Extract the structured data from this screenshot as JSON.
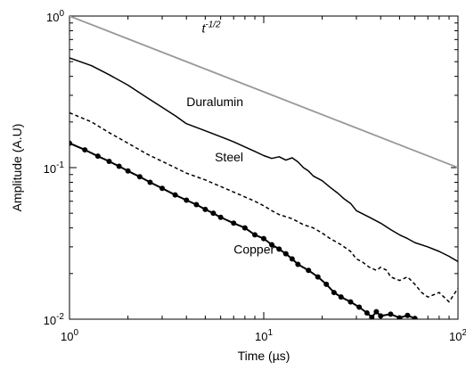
{
  "chart_data": {
    "type": "line",
    "xlabel": "Time (µs)",
    "ylabel": "Amplitude (A.U)",
    "xscale": "log",
    "yscale": "log",
    "xlim": [
      1,
      100
    ],
    "ylim": [
      0.01,
      1
    ],
    "grid": false,
    "legend": "none",
    "x_ticks": [
      {
        "value": 1,
        "base": "10",
        "exp": "0"
      },
      {
        "value": 10,
        "base": "10",
        "exp": "1"
      },
      {
        "value": 100,
        "base": "10",
        "exp": "2"
      }
    ],
    "y_ticks": [
      {
        "value": 0.01,
        "base": "10",
        "exp": "-2"
      },
      {
        "value": 0.1,
        "base": "10",
        "exp": "-1"
      },
      {
        "value": 1,
        "base": "10",
        "exp": "0"
      }
    ],
    "series": [
      {
        "name": "t",
        "name_sup": "-1/2",
        "label_at": [
          4.8,
          0.78
        ],
        "style": "solid-gray",
        "color": "#999999",
        "x": [
          1,
          100
        ],
        "y": [
          1.0,
          0.1
        ]
      },
      {
        "name": "Duralumin",
        "label_at": [
          4.0,
          0.255
        ],
        "style": "solid",
        "color": "#000000",
        "x": [
          1,
          1.3,
          1.6,
          2,
          2.5,
          3,
          3.5,
          4,
          5,
          6,
          7,
          8,
          9,
          10,
          11,
          12,
          13,
          14,
          15,
          16,
          17,
          18,
          20,
          22,
          24,
          26,
          28,
          30,
          35,
          40,
          45,
          50,
          55,
          60,
          70,
          80,
          90,
          100
        ],
        "y": [
          0.53,
          0.47,
          0.41,
          0.35,
          0.29,
          0.25,
          0.22,
          0.195,
          0.175,
          0.16,
          0.148,
          0.137,
          0.128,
          0.12,
          0.115,
          0.118,
          0.112,
          0.116,
          0.109,
          0.1,
          0.095,
          0.088,
          0.082,
          0.074,
          0.068,
          0.062,
          0.058,
          0.052,
          0.047,
          0.043,
          0.039,
          0.036,
          0.034,
          0.032,
          0.03,
          0.028,
          0.026,
          0.024
        ]
      },
      {
        "name": "Steel",
        "label_at": [
          5.6,
          0.11
        ],
        "style": "dashed",
        "color": "#000000",
        "x": [
          1,
          1.3,
          1.6,
          2,
          2.5,
          3,
          3.5,
          4,
          5,
          6,
          7,
          8,
          9,
          10,
          11,
          12,
          14,
          16,
          18,
          20,
          22,
          25,
          28,
          30,
          32,
          35,
          38,
          40,
          43,
          45,
          50,
          55,
          60,
          65,
          70,
          80,
          90,
          100
        ],
        "y": [
          0.23,
          0.2,
          0.17,
          0.145,
          0.123,
          0.11,
          0.1,
          0.092,
          0.083,
          0.075,
          0.069,
          0.064,
          0.06,
          0.056,
          0.052,
          0.049,
          0.046,
          0.042,
          0.04,
          0.037,
          0.034,
          0.031,
          0.028,
          0.025,
          0.024,
          0.022,
          0.021,
          0.022,
          0.021,
          0.019,
          0.018,
          0.019,
          0.017,
          0.015,
          0.014,
          0.015,
          0.013,
          0.016
        ]
      },
      {
        "name": "Copper",
        "label_at": [
          7.0,
          0.027
        ],
        "style": "solid-dots",
        "color": "#000000",
        "x": [
          1,
          1.2,
          1.4,
          1.6,
          1.8,
          2,
          2.3,
          2.6,
          3,
          3.5,
          4,
          4.5,
          5,
          5.5,
          6,
          7,
          8,
          9,
          10,
          11,
          12,
          13,
          14,
          15,
          17,
          19,
          21,
          23,
          25,
          28,
          31,
          34,
          36,
          38,
          40,
          45,
          50,
          55,
          60
        ],
        "y": [
          0.145,
          0.131,
          0.119,
          0.11,
          0.102,
          0.095,
          0.087,
          0.08,
          0.073,
          0.066,
          0.061,
          0.057,
          0.053,
          0.05,
          0.047,
          0.043,
          0.04,
          0.036,
          0.034,
          0.031,
          0.029,
          0.027,
          0.025,
          0.023,
          0.021,
          0.019,
          0.017,
          0.015,
          0.014,
          0.013,
          0.012,
          0.011,
          0.0103,
          0.0112,
          0.0105,
          0.0108,
          0.0102,
          0.0106,
          0.0101
        ]
      }
    ]
  }
}
